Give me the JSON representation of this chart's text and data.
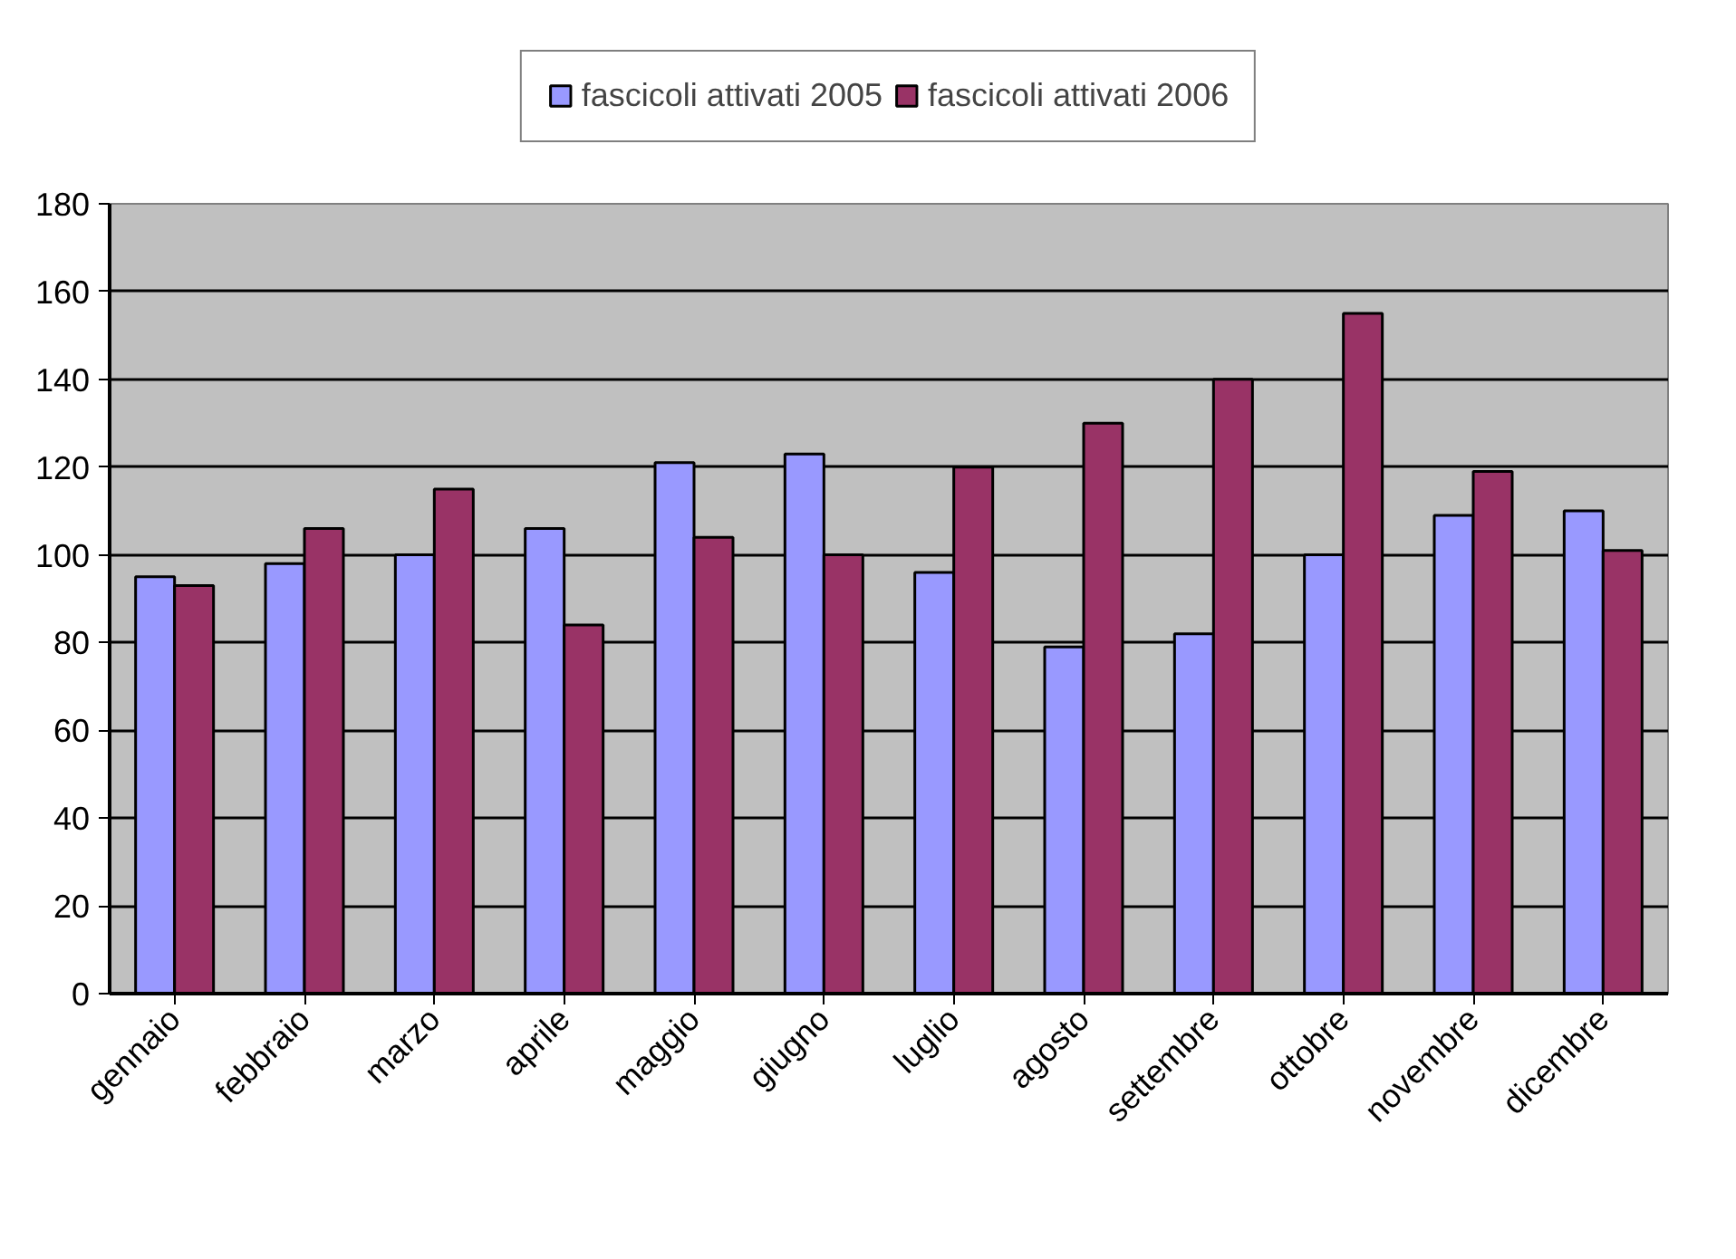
{
  "chart_data": {
    "type": "bar",
    "categories": [
      "gennaio",
      "febbraio",
      "marzo",
      "aprile",
      "maggio",
      "giugno",
      "luglio",
      "agosto",
      "settembre",
      "ottobre",
      "novembre",
      "dicembre"
    ],
    "series": [
      {
        "name": "fascicoli attivati 2005",
        "color": "#9999ff",
        "values": [
          95,
          98,
          100,
          106,
          121,
          123,
          96,
          79,
          82,
          100,
          109,
          110
        ]
      },
      {
        "name": "fascicoli attivati 2006",
        "color": "#993366",
        "values": [
          93,
          106,
          115,
          84,
          104,
          100,
          120,
          130,
          140,
          155,
          119,
          101
        ]
      }
    ],
    "ylim": [
      0,
      180
    ],
    "yticks": [
      0,
      20,
      40,
      60,
      80,
      100,
      120,
      140,
      160,
      180
    ],
    "grid": "y",
    "legend": "top"
  }
}
